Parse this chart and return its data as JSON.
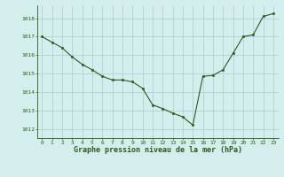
{
  "x": [
    0,
    1,
    2,
    3,
    4,
    5,
    6,
    7,
    8,
    9,
    10,
    11,
    12,
    13,
    14,
    15,
    16,
    17,
    18,
    19,
    20,
    21,
    22,
    23
  ],
  "y": [
    1017.0,
    1016.7,
    1016.4,
    1015.9,
    1015.5,
    1015.2,
    1014.85,
    1014.65,
    1014.65,
    1014.55,
    1014.2,
    1013.3,
    1013.1,
    1012.85,
    1012.65,
    1012.2,
    1014.85,
    1014.9,
    1015.2,
    1016.1,
    1017.0,
    1017.1,
    1018.1,
    1018.25
  ],
  "line_color": "#2d5a1b",
  "marker_color": "#2d5a1b",
  "bg_color": "#d4eeee",
  "grid_color": "#aacccc",
  "ylabel_ticks": [
    1012,
    1013,
    1014,
    1015,
    1016,
    1017,
    1018
  ],
  "xlabel_ticks": [
    0,
    1,
    2,
    3,
    4,
    5,
    6,
    7,
    8,
    9,
    10,
    11,
    12,
    13,
    14,
    15,
    16,
    17,
    18,
    19,
    20,
    21,
    22,
    23
  ],
  "xlabel": "Graphe pression niveau de la mer (hPa)",
  "ylim": [
    1011.5,
    1018.7
  ],
  "xlim": [
    -0.5,
    23.5
  ],
  "title_fontsize": 5.0,
  "tick_fontsize": 4.5,
  "xlabel_fontsize": 6.0
}
